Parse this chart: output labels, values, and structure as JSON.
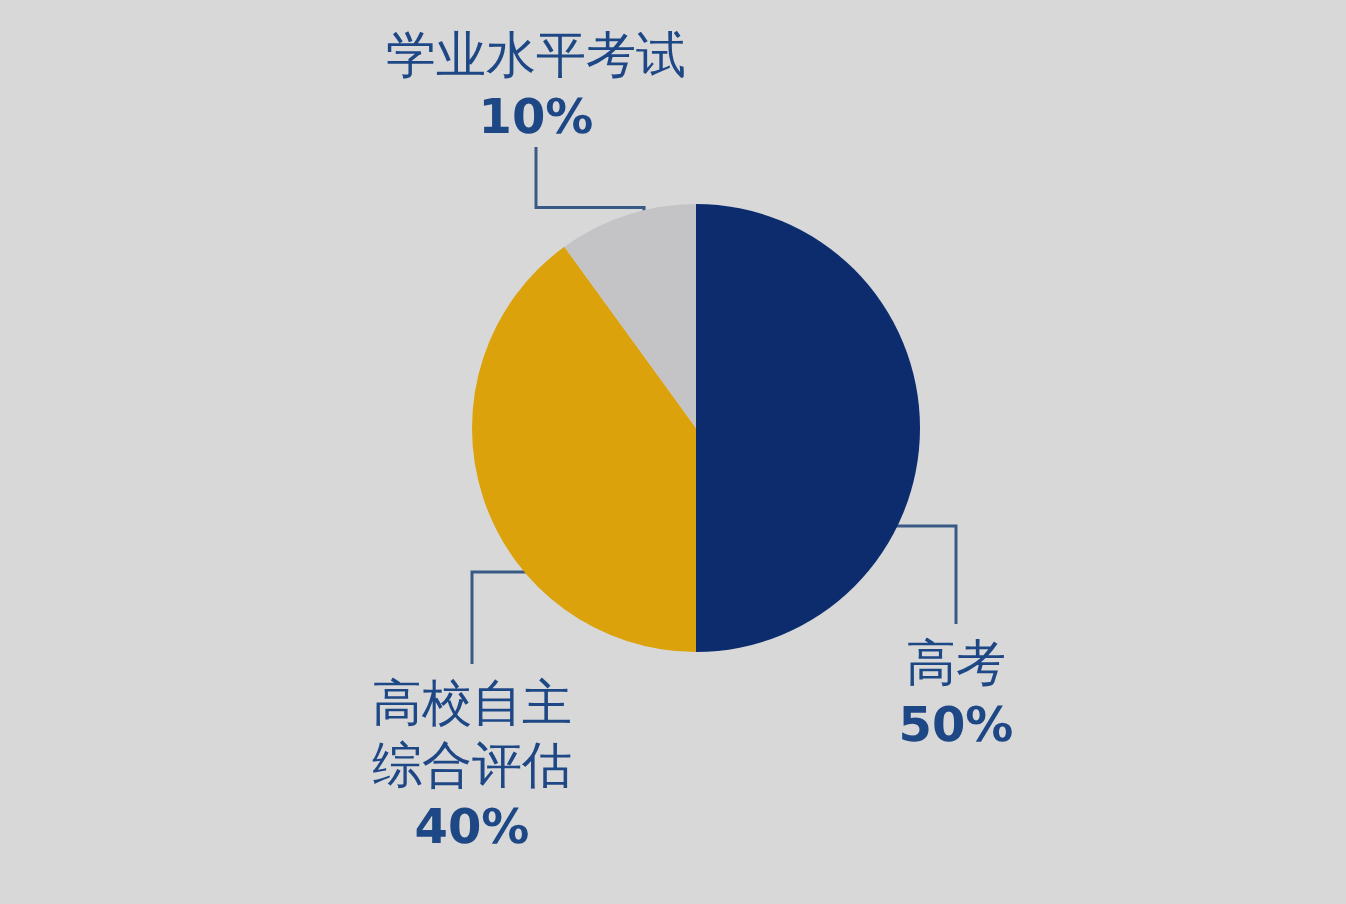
{
  "chart_data": {
    "type": "pie",
    "categories": [
      "高考",
      "高校自主综合评估",
      "学业水平考试"
    ],
    "values": [
      50,
      40,
      10
    ],
    "value_labels": [
      "50%",
      "40%",
      "10%"
    ],
    "colors": [
      "#0d2c6e",
      "#dba20b",
      "#c4c4c6"
    ],
    "legend": false
  }
}
